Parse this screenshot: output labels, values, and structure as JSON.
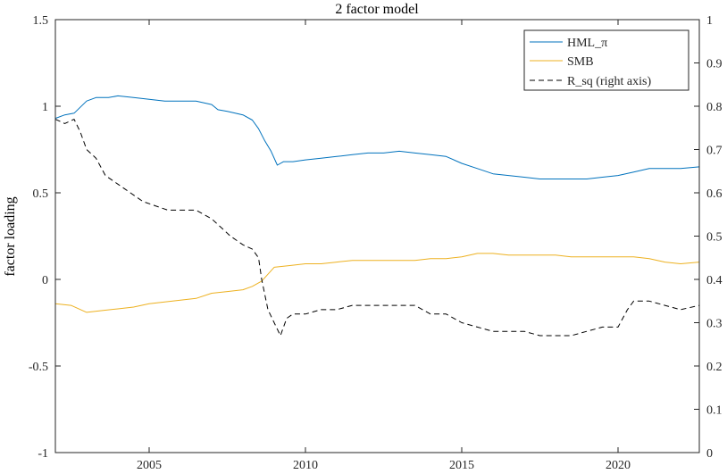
{
  "chart_data": {
    "type": "line",
    "title": "2 factor model",
    "ylabel": "factor loading",
    "xlim": [
      2002.0,
      2022.6
    ],
    "ylim_left": [
      -1,
      1.5
    ],
    "ylim_right": [
      0,
      1
    ],
    "x_ticks": [
      2005,
      2010,
      2015,
      2020
    ],
    "y_ticks_left": [
      "1.5",
      "1",
      "0.5",
      "0",
      "-0.5",
      "-1"
    ],
    "y_ticks_right": [
      "1",
      "0.9",
      "0.8",
      "0.7",
      "0.6",
      "0.5",
      "0.4",
      "0.3",
      "0.2",
      "0.1",
      "0"
    ],
    "grid": false,
    "legend_position": "top-right",
    "series": [
      {
        "name": "HML_π",
        "axis": "left",
        "color": "#0072BD",
        "dash": "solid",
        "x": [
          2002.0,
          2002.3,
          2002.6,
          2003.0,
          2003.3,
          2003.7,
          2004.0,
          2004.5,
          2005.0,
          2005.5,
          2006.0,
          2006.5,
          2007.0,
          2007.2,
          2007.5,
          2008.0,
          2008.3,
          2008.5,
          2008.7,
          2008.9,
          2009.1,
          2009.3,
          2009.6,
          2010.0,
          2010.5,
          2011.0,
          2011.5,
          2012.0,
          2012.5,
          2013.0,
          2013.5,
          2014.0,
          2014.5,
          2015.0,
          2015.5,
          2016.0,
          2016.5,
          2017.0,
          2017.5,
          2018.0,
          2018.5,
          2019.0,
          2019.5,
          2020.0,
          2020.5,
          2021.0,
          2021.5,
          2022.0,
          2022.6
        ],
        "y": [
          0.93,
          0.95,
          0.96,
          1.03,
          1.05,
          1.05,
          1.06,
          1.05,
          1.04,
          1.03,
          1.03,
          1.03,
          1.01,
          0.98,
          0.97,
          0.95,
          0.92,
          0.87,
          0.8,
          0.74,
          0.66,
          0.68,
          0.68,
          0.69,
          0.7,
          0.71,
          0.72,
          0.73,
          0.73,
          0.74,
          0.73,
          0.72,
          0.71,
          0.67,
          0.64,
          0.61,
          0.6,
          0.59,
          0.58,
          0.58,
          0.58,
          0.58,
          0.59,
          0.6,
          0.62,
          0.64,
          0.64,
          0.64,
          0.65
        ]
      },
      {
        "name": "SMB",
        "axis": "left",
        "color": "#EDB120",
        "dash": "solid",
        "x": [
          2002.0,
          2002.5,
          2003.0,
          2003.5,
          2004.0,
          2004.5,
          2005.0,
          2005.5,
          2006.0,
          2006.5,
          2007.0,
          2007.5,
          2008.0,
          2008.3,
          2008.6,
          2009.0,
          2009.5,
          2010.0,
          2010.5,
          2011.0,
          2011.5,
          2012.0,
          2012.5,
          2013.0,
          2013.5,
          2014.0,
          2014.5,
          2015.0,
          2015.5,
          2016.0,
          2016.5,
          2017.0,
          2017.5,
          2018.0,
          2018.5,
          2019.0,
          2019.5,
          2020.0,
          2020.5,
          2021.0,
          2021.5,
          2022.0,
          2022.6
        ],
        "y": [
          -0.14,
          -0.15,
          -0.19,
          -0.18,
          -0.17,
          -0.16,
          -0.14,
          -0.13,
          -0.12,
          -0.11,
          -0.08,
          -0.07,
          -0.06,
          -0.04,
          -0.01,
          0.07,
          0.08,
          0.09,
          0.09,
          0.1,
          0.11,
          0.11,
          0.11,
          0.11,
          0.11,
          0.12,
          0.12,
          0.13,
          0.15,
          0.15,
          0.14,
          0.14,
          0.14,
          0.14,
          0.13,
          0.13,
          0.13,
          0.13,
          0.13,
          0.12,
          0.1,
          0.09,
          0.1
        ]
      },
      {
        "name": "R_sq (right axis)",
        "axis": "right",
        "color": "#000000",
        "dash": "dashed",
        "x": [
          2002.0,
          2002.3,
          2002.6,
          2002.8,
          2003.0,
          2003.3,
          2003.6,
          2004.0,
          2004.4,
          2004.8,
          2005.2,
          2005.6,
          2006.0,
          2006.5,
          2007.0,
          2007.3,
          2007.6,
          2008.0,
          2008.3,
          2008.5,
          2008.6,
          2008.8,
          2009.0,
          2009.2,
          2009.4,
          2009.6,
          2010.0,
          2010.5,
          2011.0,
          2011.5,
          2012.0,
          2012.5,
          2013.0,
          2013.5,
          2014.0,
          2014.5,
          2015.0,
          2015.5,
          2016.0,
          2016.5,
          2017.0,
          2017.5,
          2018.0,
          2018.5,
          2019.0,
          2019.5,
          2020.0,
          2020.3,
          2020.5,
          2021.0,
          2021.5,
          2022.0,
          2022.6
        ],
        "y": [
          0.77,
          0.76,
          0.77,
          0.74,
          0.7,
          0.68,
          0.64,
          0.62,
          0.6,
          0.58,
          0.57,
          0.56,
          0.56,
          0.56,
          0.54,
          0.52,
          0.5,
          0.48,
          0.47,
          0.45,
          0.4,
          0.33,
          0.3,
          0.27,
          0.31,
          0.32,
          0.32,
          0.33,
          0.33,
          0.34,
          0.34,
          0.34,
          0.34,
          0.34,
          0.32,
          0.32,
          0.3,
          0.29,
          0.28,
          0.28,
          0.28,
          0.27,
          0.27,
          0.27,
          0.28,
          0.29,
          0.29,
          0.33,
          0.35,
          0.35,
          0.34,
          0.33,
          0.34
        ]
      }
    ]
  }
}
